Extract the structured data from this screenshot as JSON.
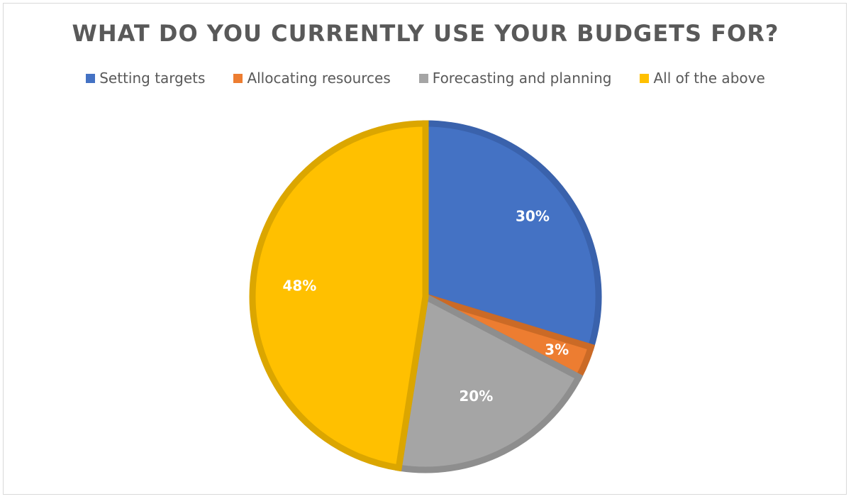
{
  "chart_data": {
    "type": "pie",
    "title": "WHAT DO YOU CURRENTLY USE YOUR BUDGETS FOR?",
    "categories": [
      "Setting targets",
      "Allocating resources",
      "Forecasting and planning",
      "All of the above"
    ],
    "values": [
      30,
      3,
      20,
      48
    ],
    "data_labels": [
      "30%",
      "3%",
      "20%",
      "48%"
    ],
    "colors": [
      "#4472C4",
      "#ED7D31",
      "#A5A5A5",
      "#FFC000"
    ],
    "border_colors": [
      "#3A62AC",
      "#CB6A26",
      "#8E8E8E",
      "#DBA600"
    ],
    "legend_position": "top"
  }
}
